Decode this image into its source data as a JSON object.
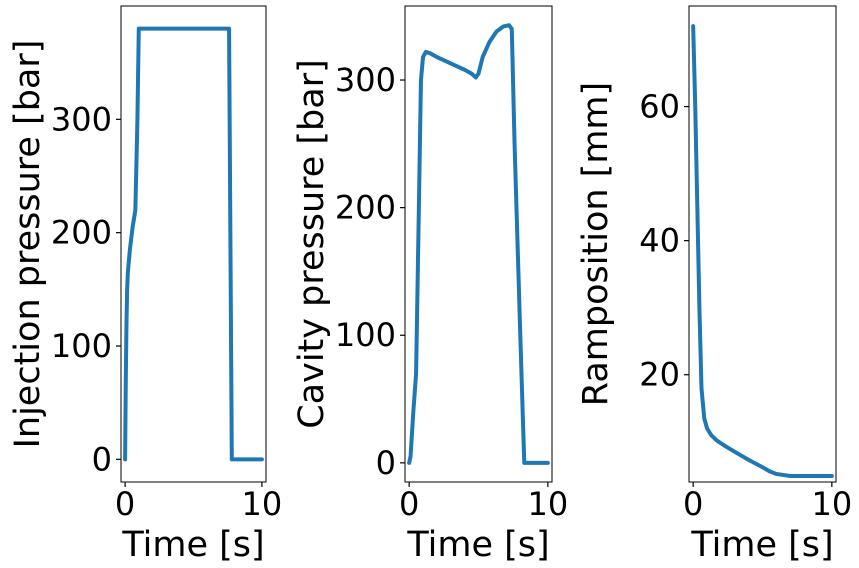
{
  "chart_data": [
    {
      "type": "line",
      "title": "",
      "xlabel": "Time [s]",
      "ylabel": "Injection pressure [bar]",
      "xlim": [
        -0.3,
        10.3
      ],
      "ylim": [
        -20,
        400
      ],
      "xticks": [
        0,
        10
      ],
      "yticks": [
        0,
        100,
        200,
        300
      ],
      "grid": false,
      "series": [
        {
          "name": "injection pressure",
          "color": "#1f77b4",
          "x": [
            0.0,
            0.05,
            0.1,
            0.15,
            0.2,
            0.35,
            0.55,
            0.75,
            0.9,
            1.0,
            7.6,
            7.8,
            10.0
          ],
          "y": [
            0,
            70,
            120,
            150,
            165,
            185,
            205,
            220,
            300,
            380,
            380,
            0,
            0
          ]
        }
      ]
    },
    {
      "type": "line",
      "title": "",
      "xlabel": "Time [s]",
      "ylabel": "Cavity pressure [bar]",
      "xlim": [
        -0.3,
        10.3
      ],
      "ylim": [
        -15,
        358
      ],
      "xticks": [
        0,
        10
      ],
      "yticks": [
        0,
        100,
        200,
        300
      ],
      "grid": false,
      "series": [
        {
          "name": "cavity pressure",
          "color": "#1f77b4",
          "x": [
            0.0,
            0.1,
            0.3,
            0.5,
            0.7,
            0.85,
            1.0,
            1.2,
            1.5,
            2.0,
            3.0,
            4.0,
            4.5,
            4.8,
            5.0,
            5.3,
            5.8,
            6.3,
            6.8,
            7.2,
            7.4,
            7.6,
            8.0,
            8.3,
            10.0
          ],
          "y": [
            0,
            5,
            40,
            70,
            200,
            300,
            318,
            322,
            321,
            318,
            313,
            308,
            305,
            302,
            305,
            318,
            330,
            338,
            342,
            343,
            340,
            250,
            105,
            0,
            0
          ]
        }
      ]
    },
    {
      "type": "line",
      "title": "",
      "xlabel": "Time [s]",
      "ylabel": "Ramposition [mm]",
      "xlim": [
        -0.3,
        10.3
      ],
      "ylim": [
        4,
        75
      ],
      "xticks": [
        0,
        10
      ],
      "yticks": [
        20,
        40,
        60
      ],
      "grid": false,
      "series": [
        {
          "name": "ram position",
          "color": "#1f77b4",
          "x": [
            0.0,
            0.15,
            0.3,
            0.45,
            0.6,
            0.8,
            1.0,
            1.3,
            1.7,
            2.2,
            3.0,
            4.0,
            5.0,
            5.5,
            6.0,
            7.0,
            8.0,
            10.0
          ],
          "y": [
            72,
            60,
            45,
            30,
            18,
            13.5,
            12,
            11,
            10.2,
            9.5,
            8.5,
            7.3,
            6.2,
            5.6,
            5.2,
            4.9,
            4.9,
            4.9
          ]
        }
      ]
    }
  ]
}
